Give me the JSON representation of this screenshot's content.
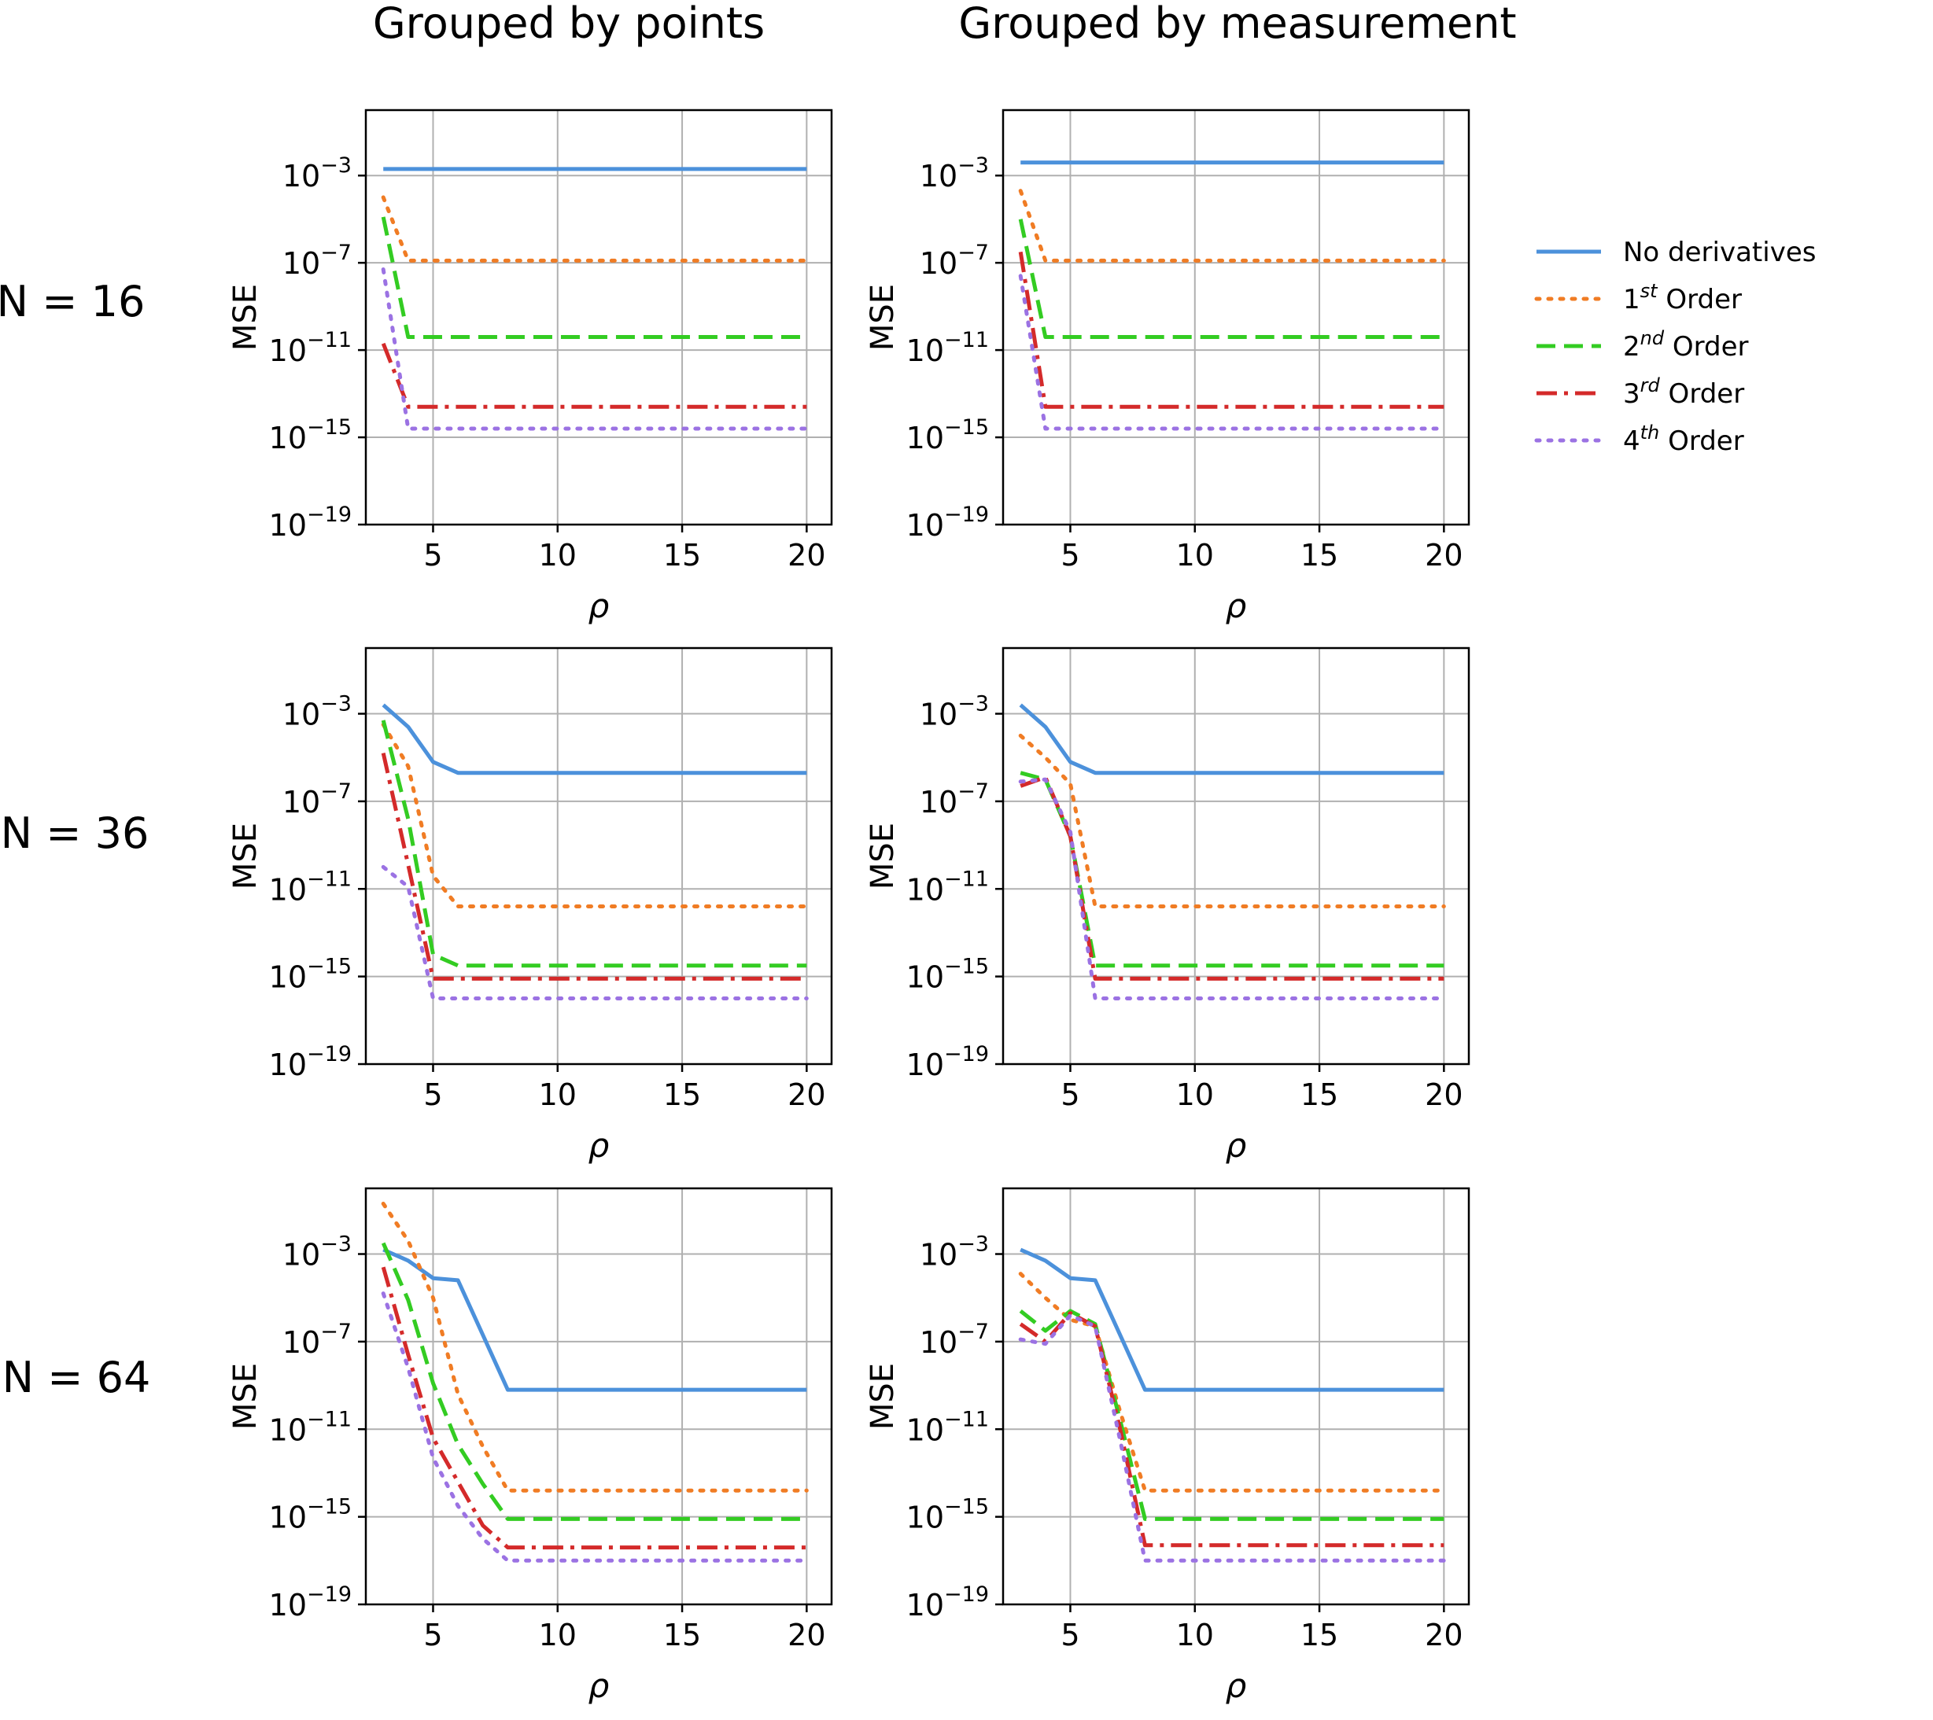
{
  "figure": {
    "column_titles": [
      "Grouped by points",
      "Grouped by measurement"
    ],
    "row_labels": [
      "N = 16",
      "N = 36",
      "N = 64"
    ]
  },
  "legend": [
    {
      "label": "No derivatives",
      "base": "No derivatives",
      "sup": "",
      "rest": "",
      "color": "#4c91db",
      "dash": "solid"
    },
    {
      "label": "1st Order",
      "base": "1",
      "sup": "st",
      "rest": " Order",
      "color": "#f07c24",
      "dash": "dot"
    },
    {
      "label": "2nd Order",
      "base": "2",
      "sup": "nd",
      "rest": " Order",
      "color": "#33cc22",
      "dash": "dash"
    },
    {
      "label": "3rd Order",
      "base": "3",
      "sup": "rd",
      "rest": " Order",
      "color": "#d42a2a",
      "dash": "dashdot"
    },
    {
      "label": "4th Order",
      "base": "4",
      "sup": "th",
      "rest": " Order",
      "color": "#9b72e3",
      "dash": "dot"
    }
  ],
  "axis_text": {
    "ylabel": "MSE",
    "xlabel": "ρ",
    "xticks": [
      "5",
      "10",
      "15",
      "20"
    ],
    "yticks": [
      {
        "base": "10",
        "exp": "−3"
      },
      {
        "base": "10",
        "exp": "−7"
      },
      {
        "base": "10",
        "exp": "−11"
      },
      {
        "base": "10",
        "exp": "−15"
      },
      {
        "base": "10",
        "exp": "−19"
      }
    ]
  },
  "chart_data": [
    {
      "type": "line",
      "title": "Grouped by points",
      "row": "N = 16",
      "xlabel": "ρ",
      "ylabel": "MSE",
      "yscale": "log",
      "xlim": [
        2.3,
        21
      ],
      "ylim_log10": [
        -19,
        0
      ],
      "x": [
        3,
        4,
        5,
        6,
        7,
        8,
        9,
        10,
        11,
        12,
        13,
        14,
        15,
        16,
        17,
        18,
        19,
        20
      ],
      "series": [
        {
          "name": "No derivatives",
          "log10_values": [
            -2.7,
            -2.7,
            -2.7,
            -2.7,
            -2.7,
            -2.7,
            -2.7,
            -2.7,
            -2.7,
            -2.7,
            -2.7,
            -2.7,
            -2.7,
            -2.7,
            -2.7,
            -2.7,
            -2.7,
            -2.7
          ]
        },
        {
          "name": "1st Order",
          "log10_values": [
            -4.0,
            -6.9,
            -6.9,
            -6.9,
            -6.9,
            -6.9,
            -6.9,
            -6.9,
            -6.9,
            -6.9,
            -6.9,
            -6.9,
            -6.9,
            -6.9,
            -6.9,
            -6.9,
            -6.9,
            -6.9
          ]
        },
        {
          "name": "2nd Order",
          "log10_values": [
            -4.9,
            -10.4,
            -10.4,
            -10.4,
            -10.4,
            -10.4,
            -10.4,
            -10.4,
            -10.4,
            -10.4,
            -10.4,
            -10.4,
            -10.4,
            -10.4,
            -10.4,
            -10.4,
            -10.4,
            -10.4
          ]
        },
        {
          "name": "3rd Order",
          "log10_values": [
            -10.7,
            -13.6,
            -13.6,
            -13.6,
            -13.6,
            -13.6,
            -13.6,
            -13.6,
            -13.6,
            -13.6,
            -13.6,
            -13.6,
            -13.6,
            -13.6,
            -13.6,
            -13.6,
            -13.6,
            -13.6
          ]
        },
        {
          "name": "4th Order",
          "log10_values": [
            -7.3,
            -14.6,
            -14.6,
            -14.6,
            -14.6,
            -14.6,
            -14.6,
            -14.6,
            -14.6,
            -14.6,
            -14.6,
            -14.6,
            -14.6,
            -14.6,
            -14.6,
            -14.6,
            -14.6,
            -14.6
          ]
        }
      ]
    },
    {
      "type": "line",
      "title": "Grouped by measurement",
      "row": "N = 16",
      "xlabel": "ρ",
      "ylabel": "MSE",
      "yscale": "log",
      "xlim": [
        2.3,
        21
      ],
      "ylim_log10": [
        -19,
        0
      ],
      "x": [
        3,
        4,
        5,
        6,
        7,
        8,
        9,
        10,
        11,
        12,
        13,
        14,
        15,
        16,
        17,
        18,
        19,
        20
      ],
      "series": [
        {
          "name": "No derivatives",
          "log10_values": [
            -2.4,
            -2.4,
            -2.4,
            -2.4,
            -2.4,
            -2.4,
            -2.4,
            -2.4,
            -2.4,
            -2.4,
            -2.4,
            -2.4,
            -2.4,
            -2.4,
            -2.4,
            -2.4,
            -2.4,
            -2.4
          ]
        },
        {
          "name": "1st Order",
          "log10_values": [
            -3.7,
            -6.9,
            -6.9,
            -6.9,
            -6.9,
            -6.9,
            -6.9,
            -6.9,
            -6.9,
            -6.9,
            -6.9,
            -6.9,
            -6.9,
            -6.9,
            -6.9,
            -6.9,
            -6.9,
            -6.9
          ]
        },
        {
          "name": "2nd Order",
          "log10_values": [
            -5.0,
            -10.4,
            -10.4,
            -10.4,
            -10.4,
            -10.4,
            -10.4,
            -10.4,
            -10.4,
            -10.4,
            -10.4,
            -10.4,
            -10.4,
            -10.4,
            -10.4,
            -10.4,
            -10.4,
            -10.4
          ]
        },
        {
          "name": "3rd Order",
          "log10_values": [
            -6.5,
            -13.6,
            -13.6,
            -13.6,
            -13.6,
            -13.6,
            -13.6,
            -13.6,
            -13.6,
            -13.6,
            -13.6,
            -13.6,
            -13.6,
            -13.6,
            -13.6,
            -13.6,
            -13.6,
            -13.6
          ]
        },
        {
          "name": "4th Order",
          "log10_values": [
            -7.6,
            -14.6,
            -14.6,
            -14.6,
            -14.6,
            -14.6,
            -14.6,
            -14.6,
            -14.6,
            -14.6,
            -14.6,
            -14.6,
            -14.6,
            -14.6,
            -14.6,
            -14.6,
            -14.6,
            -14.6
          ]
        }
      ]
    },
    {
      "type": "line",
      "title": "Grouped by points",
      "row": "N = 36",
      "xlabel": "ρ",
      "ylabel": "MSE",
      "yscale": "log",
      "xlim": [
        2.3,
        21
      ],
      "ylim_log10": [
        -19,
        0
      ],
      "x": [
        3,
        4,
        5,
        6,
        7,
        8,
        9,
        10,
        11,
        12,
        13,
        14,
        15,
        16,
        17,
        18,
        19,
        20
      ],
      "series": [
        {
          "name": "No derivatives",
          "log10_values": [
            -2.6,
            -3.6,
            -5.2,
            -5.7,
            -5.7,
            -5.7,
            -5.7,
            -5.7,
            -5.7,
            -5.7,
            -5.7,
            -5.7,
            -5.7,
            -5.7,
            -5.7,
            -5.7,
            -5.7,
            -5.7
          ]
        },
        {
          "name": "1st Order",
          "log10_values": [
            -3.5,
            -5.4,
            -10.4,
            -11.8,
            -11.8,
            -11.8,
            -11.8,
            -11.8,
            -11.8,
            -11.8,
            -11.8,
            -11.8,
            -11.8,
            -11.8,
            -11.8,
            -11.8,
            -11.8,
            -11.8
          ]
        },
        {
          "name": "2nd Order",
          "log10_values": [
            -3.3,
            -7.8,
            -14.0,
            -14.5,
            -14.5,
            -14.5,
            -14.5,
            -14.5,
            -14.5,
            -14.5,
            -14.5,
            -14.5,
            -14.5,
            -14.5,
            -14.5,
            -14.5,
            -14.5,
            -14.5
          ]
        },
        {
          "name": "3rd Order",
          "log10_values": [
            -4.8,
            -9.9,
            -15.1,
            -15.1,
            -15.1,
            -15.1,
            -15.1,
            -15.1,
            -15.1,
            -15.1,
            -15.1,
            -15.1,
            -15.1,
            -15.1,
            -15.1,
            -15.1,
            -15.1,
            -15.1
          ]
        },
        {
          "name": "4th Order",
          "log10_values": [
            -10.0,
            -10.9,
            -16.0,
            -16.0,
            -16.0,
            -16.0,
            -16.0,
            -16.0,
            -16.0,
            -16.0,
            -16.0,
            -16.0,
            -16.0,
            -16.0,
            -16.0,
            -16.0,
            -16.0,
            -16.0
          ]
        }
      ]
    },
    {
      "type": "line",
      "title": "Grouped by measurement",
      "row": "N = 36",
      "xlabel": "ρ",
      "ylabel": "MSE",
      "yscale": "log",
      "xlim": [
        2.3,
        21
      ],
      "ylim_log10": [
        -19,
        0
      ],
      "x": [
        3,
        4,
        5,
        6,
        7,
        8,
        9,
        10,
        11,
        12,
        13,
        14,
        15,
        16,
        17,
        18,
        19,
        20
      ],
      "series": [
        {
          "name": "No derivatives",
          "log10_values": [
            -2.6,
            -3.6,
            -5.2,
            -5.7,
            -5.7,
            -5.7,
            -5.7,
            -5.7,
            -5.7,
            -5.7,
            -5.7,
            -5.7,
            -5.7,
            -5.7,
            -5.7,
            -5.7,
            -5.7,
            -5.7
          ]
        },
        {
          "name": "1st Order",
          "log10_values": [
            -4.0,
            -5.0,
            -6.2,
            -11.8,
            -11.8,
            -11.8,
            -11.8,
            -11.8,
            -11.8,
            -11.8,
            -11.8,
            -11.8,
            -11.8,
            -11.8,
            -11.8,
            -11.8,
            -11.8,
            -11.8
          ]
        },
        {
          "name": "2nd Order",
          "log10_values": [
            -5.7,
            -6.0,
            -8.6,
            -14.5,
            -14.5,
            -14.5,
            -14.5,
            -14.5,
            -14.5,
            -14.5,
            -14.5,
            -14.5,
            -14.5,
            -14.5,
            -14.5,
            -14.5,
            -14.5,
            -14.5
          ]
        },
        {
          "name": "3rd Order",
          "log10_values": [
            -6.3,
            -5.9,
            -8.6,
            -15.1,
            -15.1,
            -15.1,
            -15.1,
            -15.1,
            -15.1,
            -15.1,
            -15.1,
            -15.1,
            -15.1,
            -15.1,
            -15.1,
            -15.1,
            -15.1,
            -15.1
          ]
        },
        {
          "name": "4th Order",
          "log10_values": [
            -6.1,
            -6.0,
            -8.4,
            -16.0,
            -16.0,
            -16.0,
            -16.0,
            -16.0,
            -16.0,
            -16.0,
            -16.0,
            -16.0,
            -16.0,
            -16.0,
            -16.0,
            -16.0,
            -16.0,
            -16.0
          ]
        }
      ]
    },
    {
      "type": "line",
      "title": "Grouped by points",
      "row": "N = 64",
      "xlabel": "ρ",
      "ylabel": "MSE",
      "yscale": "log",
      "xlim": [
        2.3,
        21
      ],
      "ylim_log10": [
        -19,
        0
      ],
      "x": [
        3,
        4,
        5,
        6,
        7,
        8,
        9,
        10,
        11,
        12,
        13,
        14,
        15,
        16,
        17,
        18,
        19,
        20
      ],
      "series": [
        {
          "name": "No derivatives",
          "log10_values": [
            -2.8,
            -3.3,
            -4.1,
            -4.2,
            -6.7,
            -9.2,
            -9.2,
            -9.2,
            -9.2,
            -9.2,
            -9.2,
            -9.2,
            -9.2,
            -9.2,
            -9.2,
            -9.2,
            -9.2,
            -9.2
          ]
        },
        {
          "name": "1st Order",
          "log10_values": [
            -0.7,
            -2.4,
            -5.0,
            -9.4,
            -11.8,
            -13.8,
            -13.8,
            -13.8,
            -13.8,
            -13.8,
            -13.8,
            -13.8,
            -13.8,
            -13.8,
            -13.8,
            -13.8,
            -13.8,
            -13.8
          ]
        },
        {
          "name": "2nd Order",
          "log10_values": [
            -2.5,
            -5.1,
            -8.9,
            -11.7,
            -13.5,
            -15.1,
            -15.1,
            -15.1,
            -15.1,
            -15.1,
            -15.1,
            -15.1,
            -15.1,
            -15.1,
            -15.1,
            -15.1,
            -15.1,
            -15.1
          ]
        },
        {
          "name": "3rd Order",
          "log10_values": [
            -3.6,
            -7.6,
            -11.4,
            -13.4,
            -15.4,
            -16.4,
            -16.4,
            -16.4,
            -16.4,
            -16.4,
            -16.4,
            -16.4,
            -16.4,
            -16.4,
            -16.4,
            -16.4,
            -16.4,
            -16.4
          ]
        },
        {
          "name": "4th Order",
          "log10_values": [
            -4.8,
            -8.2,
            -12.3,
            -14.5,
            -16.0,
            -17.0,
            -17.0,
            -17.0,
            -17.0,
            -17.0,
            -17.0,
            -17.0,
            -17.0,
            -17.0,
            -17.0,
            -17.0,
            -17.0,
            -17.0
          ]
        }
      ]
    },
    {
      "type": "line",
      "title": "Grouped by measurement",
      "row": "N = 64",
      "xlabel": "ρ",
      "ylabel": "MSE",
      "yscale": "log",
      "xlim": [
        2.3,
        21
      ],
      "ylim_log10": [
        -19,
        0
      ],
      "x": [
        3,
        4,
        5,
        6,
        7,
        8,
        9,
        10,
        11,
        12,
        13,
        14,
        15,
        16,
        17,
        18,
        19,
        20
      ],
      "series": [
        {
          "name": "No derivatives",
          "log10_values": [
            -2.8,
            -3.3,
            -4.1,
            -4.2,
            -6.7,
            -9.2,
            -9.2,
            -9.2,
            -9.2,
            -9.2,
            -9.2,
            -9.2,
            -9.2,
            -9.2,
            -9.2,
            -9.2,
            -9.2,
            -9.2
          ]
        },
        {
          "name": "1st Order",
          "log10_values": [
            -3.9,
            -5.0,
            -6.0,
            -6.3,
            -10.2,
            -13.8,
            -13.8,
            -13.8,
            -13.8,
            -13.8,
            -13.8,
            -13.8,
            -13.8,
            -13.8,
            -13.8,
            -13.8,
            -13.8,
            -13.8
          ]
        },
        {
          "name": "2nd Order",
          "log10_values": [
            -5.6,
            -6.5,
            -5.6,
            -6.2,
            -10.6,
            -15.1,
            -15.1,
            -15.1,
            -15.1,
            -15.1,
            -15.1,
            -15.1,
            -15.1,
            -15.1,
            -15.1,
            -15.1,
            -15.1,
            -15.1
          ]
        },
        {
          "name": "3rd Order",
          "log10_values": [
            -6.2,
            -7.0,
            -5.7,
            -6.3,
            -11.0,
            -16.3,
            -16.3,
            -16.3,
            -16.3,
            -16.3,
            -16.3,
            -16.3,
            -16.3,
            -16.3,
            -16.3,
            -16.3,
            -16.3,
            -16.3
          ]
        },
        {
          "name": "4th Order",
          "log10_values": [
            -6.9,
            -7.1,
            -5.8,
            -6.3,
            -11.5,
            -17.0,
            -17.0,
            -17.0,
            -17.0,
            -17.0,
            -17.0,
            -17.0,
            -17.0,
            -17.0,
            -17.0,
            -17.0,
            -17.0,
            -17.0
          ]
        }
      ]
    }
  ]
}
